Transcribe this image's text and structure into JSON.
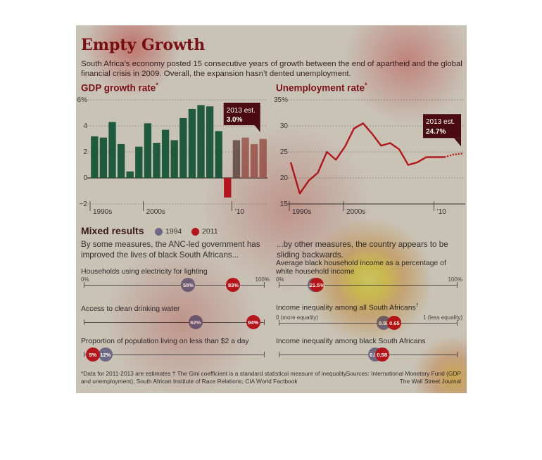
{
  "title": "Empty Growth",
  "subtitle": "South Africa’s economy posted 15 consecutive years of growth between the end of apartheid and the global financial crisis in 2009. Overall, the expansion hasn’t dented unemployment.",
  "chart_data": [
    {
      "type": "bar",
      "title": "GDP growth rate",
      "title_mark": "*",
      "x": [
        1994,
        1995,
        1996,
        1997,
        1998,
        1999,
        2000,
        2001,
        2002,
        2003,
        2004,
        2005,
        2006,
        2007,
        2008,
        2009,
        2010,
        2011,
        2012,
        2013
      ],
      "values": [
        3.2,
        3.1,
        4.3,
        2.6,
        0.5,
        2.4,
        4.2,
        2.7,
        3.7,
        2.9,
        4.6,
        5.3,
        5.6,
        5.5,
        3.6,
        -1.5,
        2.9,
        3.1,
        2.6,
        3.0
      ],
      "estimated_from": 2011,
      "colors": {
        "actual": "#1e5a3d",
        "recent": "#6e5a50",
        "estimate": "#a0665c"
      },
      "ylim": [
        -2,
        6
      ],
      "yticks": [
        "−2",
        "0",
        "2",
        "4",
        "6%"
      ],
      "xticks": [
        {
          "x": 1994,
          "label": "1990s"
        },
        {
          "x": 2000,
          "label": "2000s"
        },
        {
          "x": 2010,
          "label": "’10"
        }
      ],
      "annotation": {
        "line1": "2013 est.",
        "line2": "3.0%"
      },
      "grid": true
    },
    {
      "type": "line",
      "title": "Unemployment rate",
      "title_mark": "*",
      "x": [
        1994,
        1995,
        1996,
        1997,
        1998,
        1999,
        2000,
        2001,
        2002,
        2003,
        2004,
        2005,
        2006,
        2007,
        2008,
        2009,
        2010,
        2011,
        2012,
        2013
      ],
      "values": [
        23,
        17,
        19.5,
        21,
        25,
        23.5,
        26,
        29.5,
        30.5,
        28.5,
        26.2,
        26.7,
        25.5,
        22.5,
        23,
        24,
        24,
        24,
        24.5,
        24.7
      ],
      "estimated_from": 2011,
      "color": "#b5161c",
      "ylim": [
        15,
        35
      ],
      "yticks": [
        "15",
        "20",
        "25",
        "30",
        "35%"
      ],
      "xticks": [
        {
          "x": 1994,
          "label": "1990s"
        },
        {
          "x": 2000,
          "label": "2000s"
        },
        {
          "x": 2010,
          "label": "’10"
        }
      ],
      "annotation": {
        "line1": "2013 est.",
        "line2": "24.7%"
      },
      "grid": true
    }
  ],
  "mixed": {
    "title": "Mixed results",
    "legend": [
      {
        "label": "1994",
        "color": "#6e6a86"
      },
      {
        "label": "2011",
        "color": "#b5161c"
      }
    ],
    "left_intro": "By some measures, the ANC-led government has improved the lives of black South Africans...",
    "right_intro": "...by other measures, the country appears to be sliding backwards.",
    "indicators": [
      {
        "label": "Households using electricity for lighting",
        "scale_left": "0%",
        "scale_right": "100%",
        "v1994": 58,
        "v2011": 83,
        "label1994": "58%",
        "label2011": "83%"
      },
      {
        "label": "Access to clean drinking water",
        "v1994": 62,
        "v2011": 94,
        "label1994": "62%",
        "label2011": "94%"
      },
      {
        "label": "Proportion of population living on less than $2 a day",
        "v1994": 12,
        "v2011": 5,
        "label1994": "12%",
        "label2011": "5%"
      },
      {
        "label": "Average black household income as a percentage of white household income",
        "scale_left": "0%",
        "scale_right": "100%",
        "v1994": 20,
        "v2011": 21.5,
        "label1994": "20%",
        "label2011": "21.5%"
      },
      {
        "label": "Income inequality among all South Africans",
        "label_mark": "†",
        "scale_left": "0 (more equality)",
        "scale_right": "1 (less equality)",
        "v1994": 0.59,
        "v2011": 0.65,
        "label1994": "0.59",
        "label2011": "0.65"
      },
      {
        "label": "Income inequality among black South Africans",
        "v1994": 0.54,
        "v2011": 0.58,
        "label1994": "0.54",
        "label2011": "0.58"
      }
    ]
  },
  "footnote": "*Data for 2011-2013 are estimates  † The Gini coefficient is a standard statistical measure of inequality.",
  "footnote2": "and unemployment); South African Institute of Race Relations; CIA World Factbook",
  "sources": "Sources: International Monetary Fund (GDP",
  "publisher": "The Wall Street Journal"
}
